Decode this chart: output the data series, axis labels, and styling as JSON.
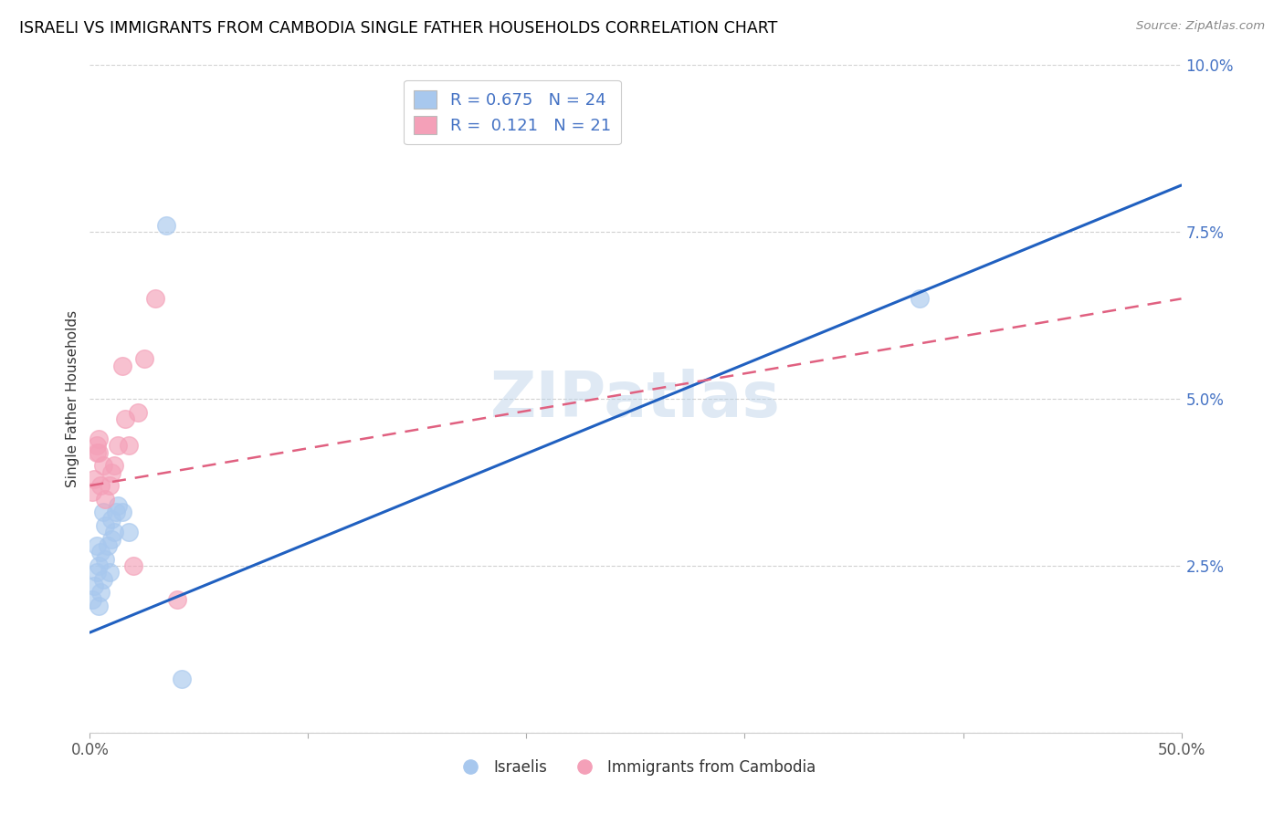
{
  "title": "ISRAELI VS IMMIGRANTS FROM CAMBODIA SINGLE FATHER HOUSEHOLDS CORRELATION CHART",
  "source": "Source: ZipAtlas.com",
  "ylabel_label": "Single Father Households",
  "xlim": [
    0.0,
    0.5
  ],
  "ylim": [
    0.0,
    0.1
  ],
  "xticks": [
    0.0,
    0.1,
    0.2,
    0.3,
    0.4,
    0.5
  ],
  "yticks": [
    0.0,
    0.025,
    0.05,
    0.075,
    0.1
  ],
  "ytick_labels": [
    "",
    "2.5%",
    "5.0%",
    "7.5%",
    "10.0%"
  ],
  "xtick_labels": [
    "0.0%",
    "",
    "",
    "",
    "",
    "50.0%"
  ],
  "blue_color": "#A8C8EE",
  "pink_color": "#F4A0B8",
  "blue_line_color": "#2060C0",
  "pink_line_color": "#E06080",
  "watermark": "ZIPatlas",
  "blue_line_x0": 0.0,
  "blue_line_y0": 0.015,
  "blue_line_x1": 0.5,
  "blue_line_y1": 0.082,
  "pink_line_x0": 0.0,
  "pink_line_y0": 0.037,
  "pink_line_x1": 0.5,
  "pink_line_y1": 0.065,
  "israelis_x": [
    0.001,
    0.002,
    0.003,
    0.003,
    0.004,
    0.004,
    0.005,
    0.005,
    0.006,
    0.006,
    0.007,
    0.007,
    0.008,
    0.009,
    0.01,
    0.01,
    0.011,
    0.012,
    0.013,
    0.015,
    0.018,
    0.035,
    0.042,
    0.38
  ],
  "israelis_y": [
    0.02,
    0.022,
    0.024,
    0.028,
    0.019,
    0.025,
    0.021,
    0.027,
    0.023,
    0.033,
    0.026,
    0.031,
    0.028,
    0.024,
    0.029,
    0.032,
    0.03,
    0.033,
    0.034,
    0.033,
    0.03,
    0.076,
    0.008,
    0.065
  ],
  "cambodia_x": [
    0.001,
    0.002,
    0.003,
    0.003,
    0.004,
    0.004,
    0.005,
    0.006,
    0.007,
    0.009,
    0.01,
    0.011,
    0.013,
    0.015,
    0.016,
    0.018,
    0.02,
    0.022,
    0.025,
    0.03,
    0.04
  ],
  "cambodia_y": [
    0.036,
    0.038,
    0.042,
    0.043,
    0.042,
    0.044,
    0.037,
    0.04,
    0.035,
    0.037,
    0.039,
    0.04,
    0.043,
    0.055,
    0.047,
    0.043,
    0.025,
    0.048,
    0.056,
    0.065,
    0.02
  ]
}
